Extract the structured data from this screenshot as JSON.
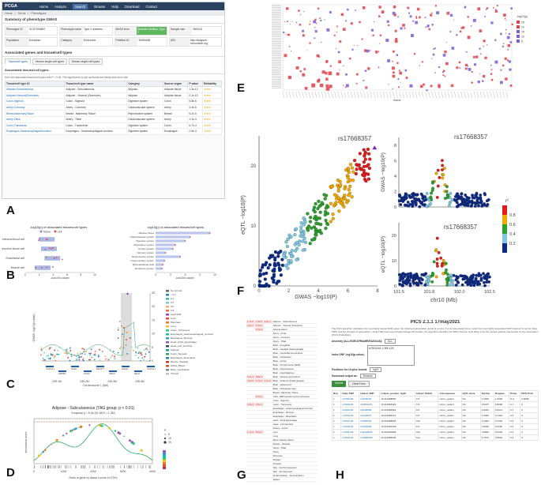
{
  "labels": {
    "a": "A",
    "b": "B",
    "c": "C",
    "d": "D",
    "e": "E",
    "f": "F",
    "g": "G",
    "h": "H"
  },
  "app": {
    "brand": "PCGA",
    "nav": [
      "Home",
      "Analyze",
      "Search",
      "Browse",
      "Help",
      "Download",
      "Contact"
    ],
    "crumbs": [
      "Home",
      "Terms",
      "Phenotypes"
    ],
    "summary_title": "Summary of phenotype GWAS",
    "fields": [
      {
        "k": "Phenotype ID",
        "v": "GCST006867"
      },
      {
        "k": "Phenotype name",
        "v": "Type 2 diabetes"
      },
      {
        "k": "MeSH term",
        "v": "Diabetes Mellitus, Type 2"
      },
      {
        "k": "Sample size",
        "v": "659316"
      },
      {
        "k": "Population",
        "v": "European"
      },
      {
        "k": "Category",
        "v": "Endocrine"
      },
      {
        "k": "PubMed ID",
        "v": "30054458"
      },
      {
        "k": "URL",
        "v": "http://diagram-consortium.org"
      }
    ],
    "assoc_title": "Associated genes and tissue/cell types",
    "tabs": [
      "Tissue/cell types",
      "Human single-cell types",
      "Mouse single-cell types"
    ],
    "table_title": "Associated tissues/cell types",
    "table_note": "Here are associated tissue/cell types with P < 0.05. The significance is plot as Bonferroni family-wise error rate",
    "columns": [
      "Tissue/cell type ID",
      "Tissue/cell type name",
      "Category",
      "Source organ",
      "P value",
      "Reliability"
    ],
    "rows": [
      [
        "Adipose-Subcutaneous",
        "Adipose - Subcutaneous",
        "Adipose",
        "Adipose tissue",
        "1.3e-13"
      ],
      [
        "Adipose-Visceral(Omentum)",
        "Adipose - Visceral (Omentum)",
        "Adipose",
        "Adipose tissue",
        "2.1e-10"
      ],
      [
        "Colon-Sigmoid",
        "Colon - Sigmoid",
        "Digestive system",
        "Colon",
        "5.8e-6"
      ],
      [
        "Artery-Coronary",
        "Artery - Coronary",
        "Cardiovascular system",
        "Artery",
        "3.4e-5"
      ],
      [
        "Breast-MammaryTissue",
        "Breast - Mammary Tissue",
        "Reproductive system",
        "Breast",
        "5.2e-5"
      ],
      [
        "Artery-Tibial",
        "Artery - Tibial",
        "Cardiovascular system",
        "Artery",
        "1.1e-4"
      ],
      [
        "Colon-Transverse",
        "Colon - Transverse",
        "Digestive system",
        "Colon",
        "6.7e-4"
      ],
      [
        "Esophagus-GastroesophagealJunction",
        "Esophagus - Gastroesophageal Junction",
        "Digestive system",
        "Esophagus",
        "2.5e-3"
      ]
    ],
    "stars": "★★★"
  },
  "chart_data": [
    {
      "type": "scatter",
      "panel": "B-left",
      "title": "-log10(p) of associated tissues/cell types",
      "legend": [
        "tissue",
        "cell"
      ],
      "categories": [
        "Immune/blood cell",
        "Connective tissue cell",
        "Endothelial cell",
        "Muscle cell"
      ],
      "values": [
        3.2,
        3.5,
        4.0,
        2.6
      ],
      "xlabel": "-log10(p-value)",
      "xticks": [
        0,
        2,
        4,
        6,
        8,
        10
      ]
    },
    {
      "type": "bar",
      "panel": "B-right",
      "title": "-log10(p) of associated tissues/cell types",
      "categories": [
        "Adipose tissue",
        "Cardiovascular system",
        "Digestive system",
        "Respiratory system",
        "Urinary system",
        "Nervous system",
        "Reproductive system",
        "Integumentary system",
        "Muscular/blood cells",
        "Endocrine system"
      ],
      "values": [
        11,
        7,
        6,
        4,
        3.5,
        2,
        5,
        1.8,
        1.5,
        1.3
      ],
      "xlabel": "-log10(p-value)",
      "xticks": [
        0,
        3,
        6,
        9,
        12
      ]
    },
    {
      "type": "line",
      "panel": "C",
      "ylabel": "GWAS -log10(p-value)",
      "xlabel": "Chromosome 1 (Mb)",
      "legend": [
        "No LD Info",
        "< 0.2",
        "0.2",
        "0.4",
        "0.6",
        "0.8",
        "Lead SNP",
        "Liver",
        "Pancreas",
        "Lung",
        "Colon_Transverse",
        "Esophagus_Gastroesophageal_Junction",
        "Esophagus_Mucosa",
        "Heart_Atrial_Appendage",
        "Heart_Left_Ventricle",
        "Adrenal",
        "Colon_Sigmoid",
        "Esophagus_Muscularis",
        "Muscle_Skeletal",
        "Whole_Blood",
        "Brain_Cerebellum",
        "Thyroid"
      ],
      "genes": [
        "ATG16L1",
        "INPP5D",
        "NGEF",
        "DGKD",
        "B3GNT7",
        "PRKCI",
        "EFHD1",
        "NEU2",
        "ATG16L1"
      ],
      "xticks": [
        "235.1M",
        "235.2M",
        "235.3M",
        "235.4M"
      ],
      "yticks": [
        0,
        5,
        10,
        15,
        20,
        25
      ]
    },
    {
      "type": "line",
      "panel": "D",
      "title": "Adipose - Subcutaneous (TAG group: p < 0.01)",
      "subtitle": "Empirical p = 5.3e-03; NES = 1.382",
      "xlabel": "Rank of gene by tissue t-score in GTEx",
      "ylabel": "enrichment score",
      "xticks": [
        "0",
        "1000",
        "2000",
        "3000",
        "4000"
      ],
      "legend": [
        "P",
        "5",
        "10",
        "15"
      ]
    },
    {
      "type": "heatmap",
      "panel": "E",
      "xlabel": "tissue",
      "legend": [
        "-log10(p)",
        "25",
        "20",
        "15",
        "10",
        "5"
      ]
    },
    {
      "type": "scatter",
      "panel": "F",
      "lead_snp": "rs17668357",
      "xlabel": "GWAS −log10(P)",
      "ylabel": "eQTL −log10(P)",
      "xticks": [
        0,
        2,
        4,
        6,
        8
      ],
      "yticks": [
        0,
        10,
        20
      ],
      "right_top_ylabel": "GWAS −log10(P)",
      "right_bottom_ylabel": "eQTL −log10(P)",
      "right_xlabel": "chr10 (Mb)",
      "right_xticks": [
        "101.5",
        "101.8",
        "102.0",
        "102.5"
      ],
      "right_top_yticks": [
        0,
        2,
        4,
        6,
        8
      ],
      "right_bottom_yticks": [
        0,
        10,
        20
      ],
      "colorbar": {
        "title": "r²",
        "ticks": [
          "0.8",
          "0.6",
          "0.4",
          "0.2"
        ]
      }
    }
  ],
  "panel_g": {
    "rows": [
      [
        "1.7e-6",
        "1.3e-5",
        "4.0e-4",
        "Adipose - Subcutaneous"
      ],
      [
        "3.4e-7",
        "1.5e-5",
        "",
        "Adipose - Visceral (Omentum)"
      ],
      [
        "",
        "2.1e-4",
        "",
        "Adrenal Gland"
      ],
      [
        "",
        "",
        "",
        "Artery - Aorta"
      ],
      [
        "",
        "",
        "",
        "Artery - Coronary"
      ],
      [
        "",
        "",
        "",
        "Artery - Tibial"
      ],
      [
        "",
        "",
        "",
        "Brain - Amygdala"
      ],
      [
        "",
        "",
        "",
        "Brain - Caudate (basal ganglia)"
      ],
      [
        "",
        "",
        "",
        "Brain - Cerebellar Hemisphere"
      ],
      [
        "",
        "",
        "",
        "Brain - Cerebellum"
      ],
      [
        "",
        "",
        "",
        "Brain - Cortex"
      ],
      [
        "",
        "",
        "",
        "Brain - Frontal Cortex (BA9)"
      ],
      [
        "",
        "",
        "",
        "Brain - Hippocampus"
      ],
      [
        "",
        "",
        "",
        "Brain - Hypothalamus"
      ],
      [
        "5.2e-4",
        "8.8e-4",
        "",
        "Brain - Nucleus accumbens"
      ],
      [
        "3.0e-5",
        "3.7e-4",
        "1.1e-4",
        "Brain - Putamen (basal ganglia)"
      ],
      [
        "",
        "",
        "",
        "Brain - Spinal cord"
      ],
      [
        "",
        "",
        "",
        "Brain - Substantia nigra"
      ],
      [
        "",
        "",
        "",
        "Breast - Mammary Tissue"
      ],
      [
        "",
        "5.2e-4",
        "",
        "Cells - EBV-transformed lymphocytes"
      ],
      [
        "",
        "",
        "",
        "Colon - Sigmoid"
      ],
      [
        "4.0e-5",
        "2.6e-4",
        "",
        "Colon - Transverse"
      ],
      [
        "",
        "",
        "",
        "Esophagus - Gastroesophageal Junction"
      ],
      [
        "",
        "",
        "",
        "Esophagus - Mucosa"
      ],
      [
        "",
        "",
        "",
        "Esophagus - Muscularis"
      ],
      [
        "",
        "",
        "",
        "Heart - Atrial Appendage"
      ],
      [
        "",
        "",
        "",
        "Heart - Left Ventricle"
      ],
      [
        "",
        "",
        "",
        "Kidney - Cortex"
      ],
      [
        "1.1e-4",
        "6.0e-5",
        "",
        "Liver"
      ],
      [
        "",
        "",
        "",
        "Lung"
      ],
      [
        "",
        "",
        "",
        "Minor Salivary Gland"
      ],
      [
        "",
        "",
        "",
        "Muscle - Skeletal"
      ],
      [
        "",
        "",
        "",
        "Nerve - Tibial"
      ],
      [
        "",
        "",
        "",
        "Ovary"
      ],
      [
        "",
        "",
        "",
        "Pancreas"
      ],
      [
        "",
        "",
        "",
        "Pituitary"
      ],
      [
        "",
        "",
        "",
        "Prostate"
      ],
      [
        "",
        "",
        "",
        "Skin - Not Sun Exposed"
      ],
      [
        "",
        "",
        "",
        "Skin - Sun Exposed"
      ],
      [
        "",
        "",
        "",
        "Small Intestine - Terminal Ileum"
      ],
      [
        "",
        "",
        "",
        "Spleen"
      ],
      [
        "",
        "",
        "",
        "Stomach"
      ],
      [
        "",
        "",
        "",
        "Testis"
      ],
      [
        "",
        "",
        "",
        "Thyroid"
      ],
      [
        "",
        "",
        "",
        "Uterus"
      ],
      [
        "",
        "",
        "",
        "Vagina"
      ],
      [
        "",
        "",
        "",
        "Whole Blood"
      ]
    ]
  },
  "panel_h": {
    "title": "PICS 2.1.1 17may2021",
    "desc": "The PICS algorithm calculates the most likely causal SNPs given the observed association signal at a locus. For an associated locus, enter the most highly associated SNP (referred to as the index SNP) and the strength of association. Using 1000 Genomes Project linkage information, the algorithm identifies the SNPs that are most likely to be the causal variants responsible for the association (PICS Probability).",
    "ancestry_label": "Ancestry (ALL/EUR/AFR/AMR/EAS/SAS):",
    "ancestry_value": "ALL",
    "index_label": "Index SNP -log10(p-value):",
    "index_value": "rs7903146  1.35E-126",
    "positions_label": "Positions for r2>pics format:",
    "positions_value": "hg19",
    "output_label": "Download output as:",
    "output_value": "Browser",
    "submit": "Submit",
    "clear": "Clear Form",
    "columns": [
      "Rsq",
      "Index SNP",
      "Linked_SNP",
      "Linked_position_hg19",
      "Linked_RefAlt",
      "Consequence",
      "eQTL Gene",
      "Dprime",
      "Rsquare",
      "Pmax",
      "PICS Prob"
    ],
    "rows": [
      [
        "1",
        "rs7903146",
        "rs7903146",
        "10:112998590",
        "C/T",
        "intron_variant",
        "NA",
        "1.0000",
        "1.0000",
        "N.A",
        "0.9998"
      ],
      [
        "1",
        "rs7903146",
        "rs34872471",
        "10:112994329",
        "T/C",
        "intron_variant",
        "NA",
        "0.9977",
        "0.8298",
        "0.7",
        "0"
      ],
      [
        "1",
        "rs7903146",
        "rs4506565",
        "10:112996282",
        "A/T",
        "intron_variant",
        "NA",
        "0.9944",
        "0.8113",
        "0.7",
        "0"
      ],
      [
        "1",
        "rs7903146",
        "rs4132670",
        "10:112994312",
        "C/T",
        "intron_variant",
        "NA",
        "1.0000",
        "0.7422",
        "0.5",
        "0"
      ],
      [
        "1",
        "rs7903146",
        "rs7895340",
        "10:112998925",
        "G/A",
        "intron_variant",
        "NA",
        "1.0000",
        "0.7332",
        "0.5",
        "0"
      ],
      [
        "1",
        "rs7903146",
        "rs7901695",
        "10:112994329",
        "T/C",
        "intron_variant",
        "NA",
        "0.8262",
        "0.6150",
        "0.4",
        "0"
      ],
      [
        "1",
        "rs7903146",
        "rs11196205",
        "10:113002808",
        "G/C",
        "intron_variant",
        "NA",
        "0.8826",
        "0.5149",
        "0.4",
        "0"
      ],
      [
        "1",
        "rs7903146",
        "rs10885406",
        "10:112995946",
        "G/A",
        "intron_variant",
        "NA",
        "0.7673",
        "0.5046",
        "0.4",
        "0"
      ]
    ]
  }
}
